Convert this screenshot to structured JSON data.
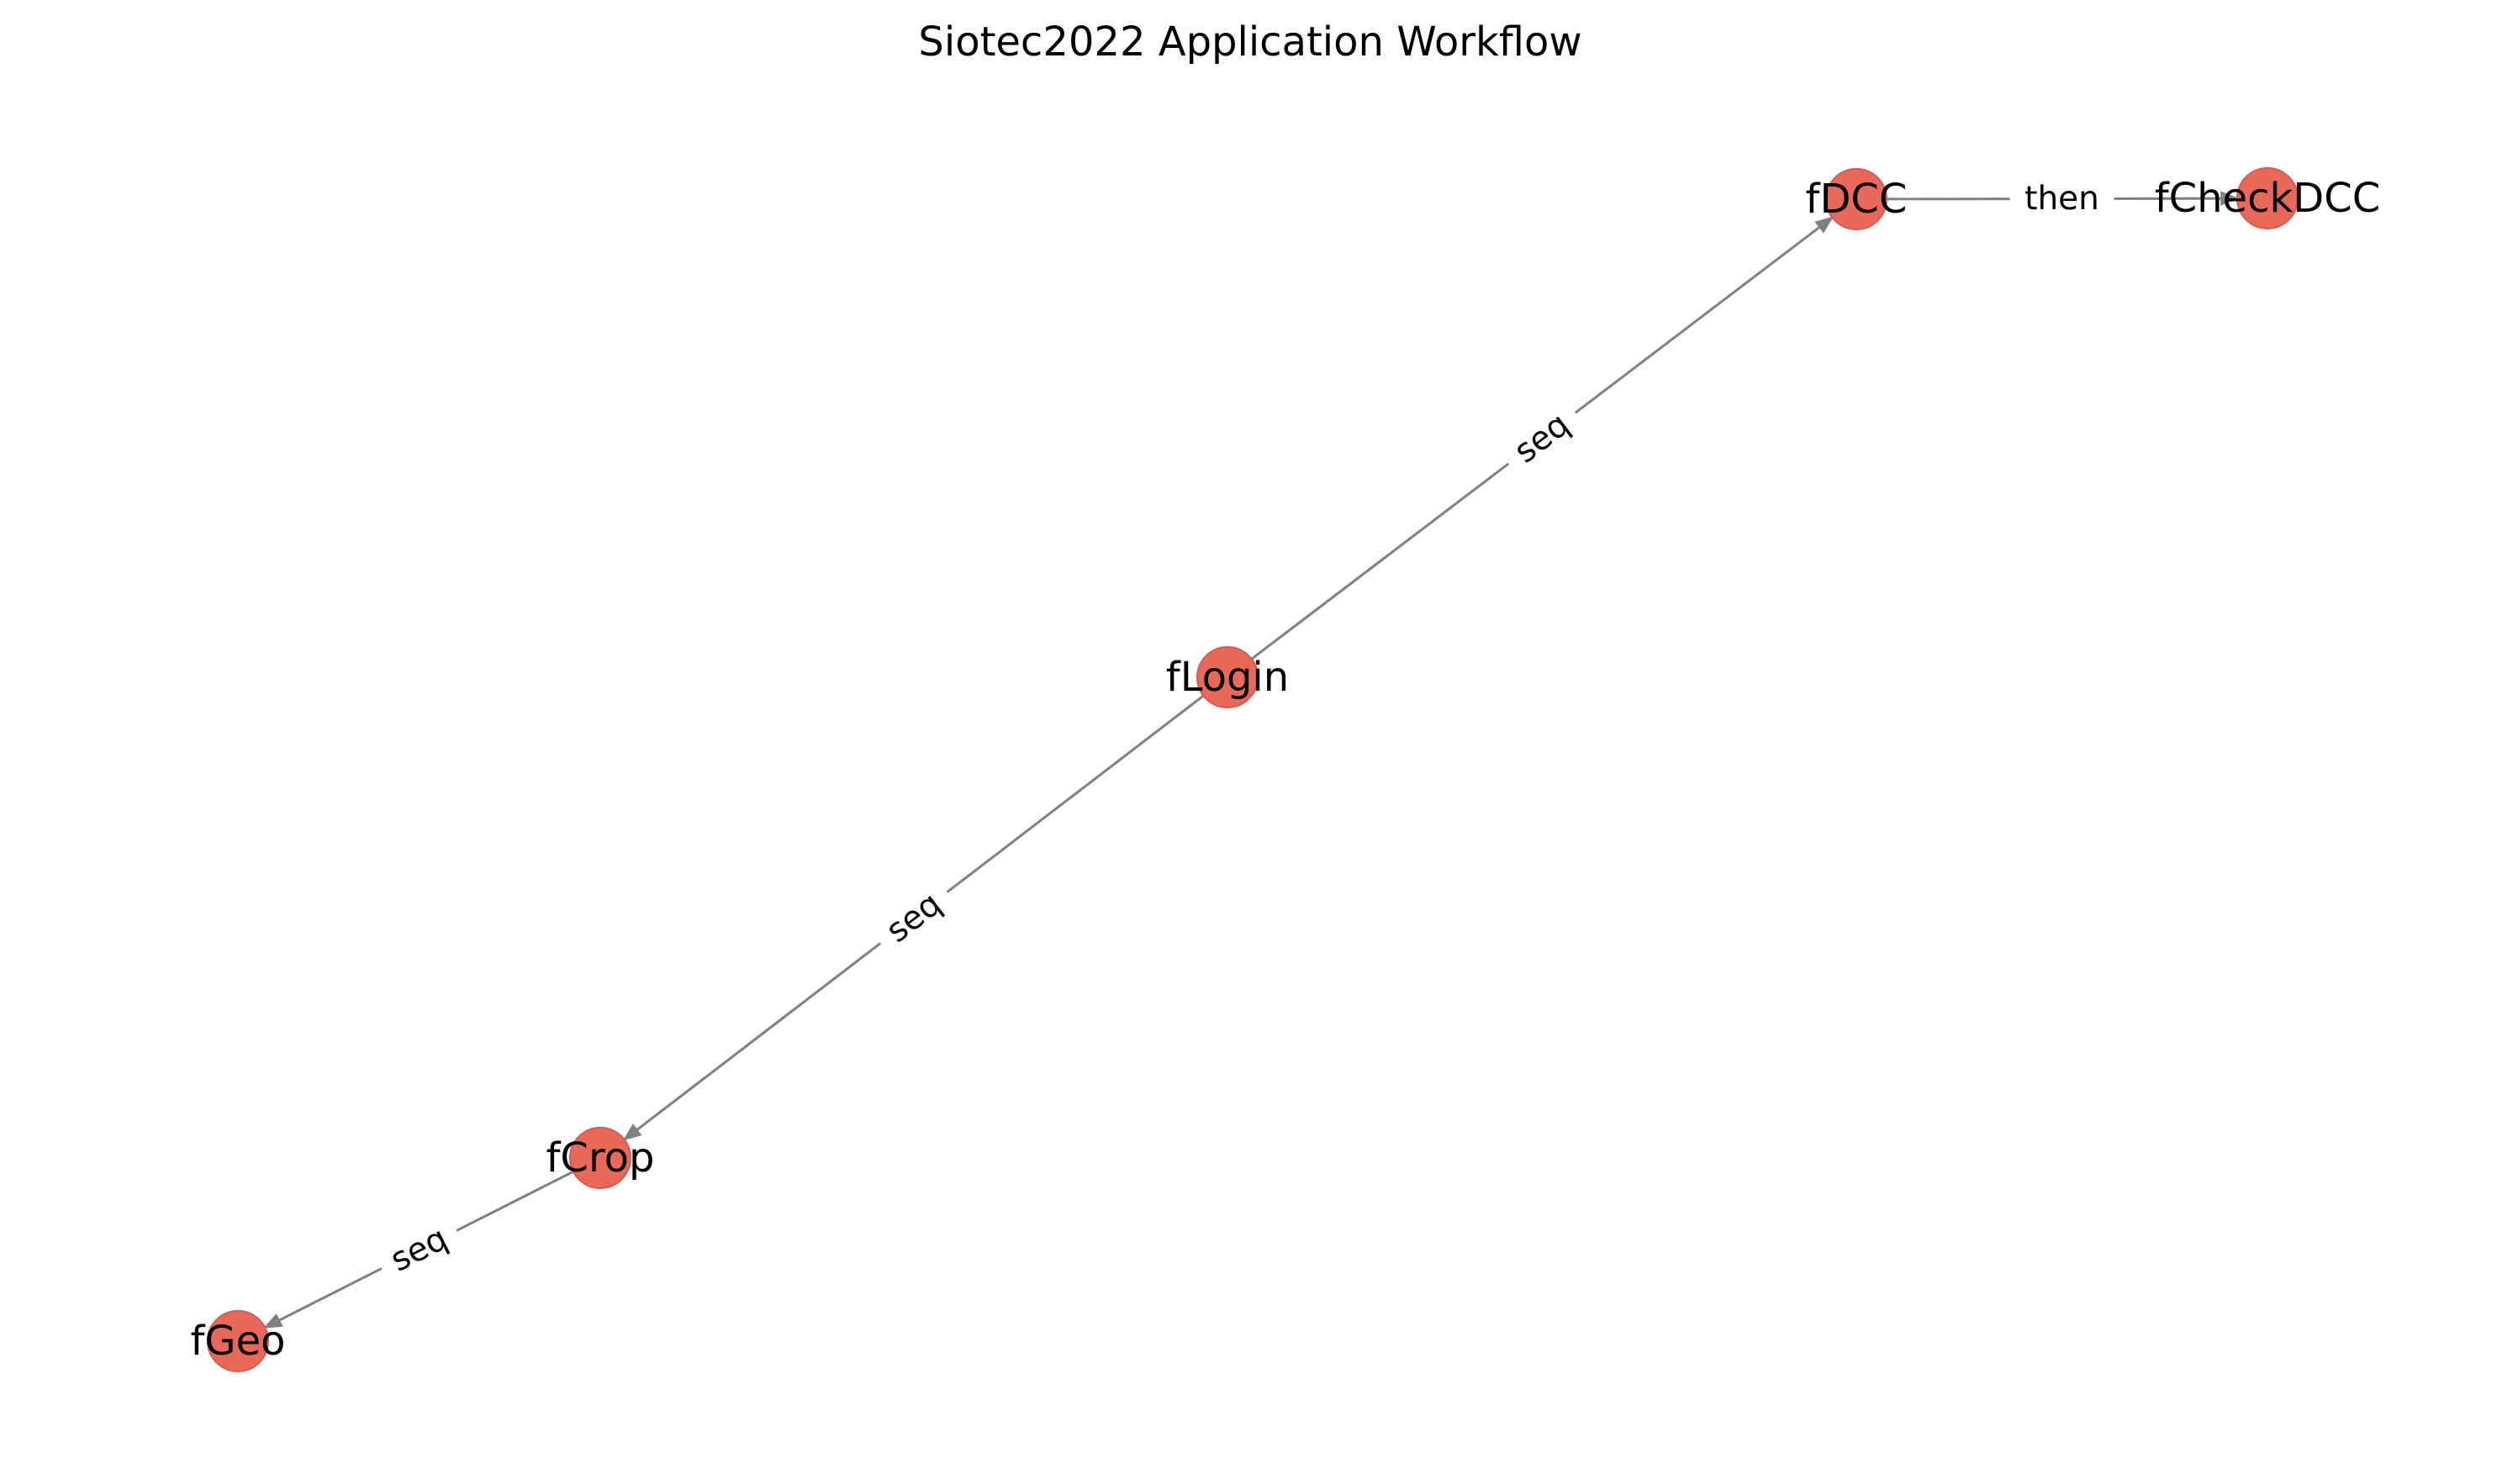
{
  "title": "Siotec2022 Application Workflow",
  "colors": {
    "node_fill": "#e8685a",
    "node_stroke": "#d65a4d",
    "edge": "#808080",
    "background": "#ffffff"
  },
  "nodes": [
    {
      "id": "fLogin",
      "label": "fLogin"
    },
    {
      "id": "fDCC",
      "label": "fDCC"
    },
    {
      "id": "fCheckDCC",
      "label": "fCheckDCC"
    },
    {
      "id": "fCrop",
      "label": "fCrop"
    },
    {
      "id": "fGeo",
      "label": "fGeo"
    }
  ],
  "edges": [
    {
      "from": "fLogin",
      "to": "fDCC",
      "label": "seq"
    },
    {
      "from": "fDCC",
      "to": "fCheckDCC",
      "label": "then"
    },
    {
      "from": "fLogin",
      "to": "fCrop",
      "label": "seq"
    },
    {
      "from": "fCrop",
      "to": "fGeo",
      "label": "seq"
    }
  ]
}
